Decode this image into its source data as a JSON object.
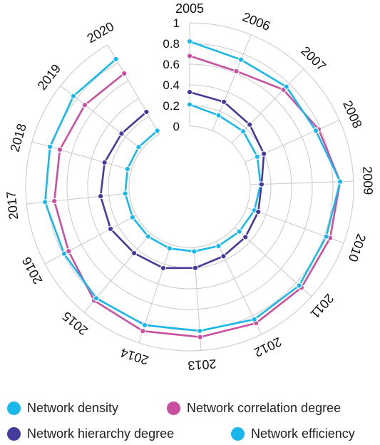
{
  "chart_data": {
    "type": "radial-line",
    "categories": [
      "2005",
      "2006",
      "2007",
      "2008",
      "2009",
      "2010",
      "2011",
      "2012",
      "2013",
      "2014",
      "2015",
      "2016",
      "2017",
      "2018",
      "2019",
      "2020"
    ],
    "radial_ticks": [
      "0",
      "0.2",
      "0.4",
      "0.6",
      "0.8",
      "1"
    ],
    "rlim": [
      0,
      1
    ],
    "grid": true,
    "legend_position": "bottom",
    "series": [
      {
        "name": "Network density",
        "color": "#1ab8ea",
        "values": [
          0.21,
          0.16,
          0.16,
          0.13,
          0.1,
          0.08,
          0.06,
          0.05,
          0.04,
          0.04,
          0.04,
          0.04,
          0.04,
          0.04,
          0.04,
          0.04
        ]
      },
      {
        "name": "Network correlation degree",
        "color": "#c8509f",
        "values": [
          0.68,
          0.62,
          0.72,
          0.78,
          0.87,
          0.86,
          0.87,
          0.88,
          0.87,
          0.88,
          0.85,
          0.74,
          0.73,
          0.72,
          0.7,
          0.68
        ]
      },
      {
        "name": "Network hierarchy degree",
        "color": "#453b9c",
        "values": [
          0.33,
          0.3,
          0.25,
          0.2,
          0.11,
          0.12,
          0.14,
          0.16,
          0.2,
          0.24,
          0.25,
          0.28,
          0.28,
          0.27,
          0.25,
          0.25
        ]
      },
      {
        "name": "Network efficiency",
        "color": "#1ab8ea",
        "values": [
          0.82,
          0.74,
          0.76,
          0.75,
          0.87,
          0.82,
          0.84,
          0.84,
          0.81,
          0.82,
          0.82,
          0.79,
          0.82,
          0.82,
          0.84,
          0.84
        ]
      }
    ]
  }
}
